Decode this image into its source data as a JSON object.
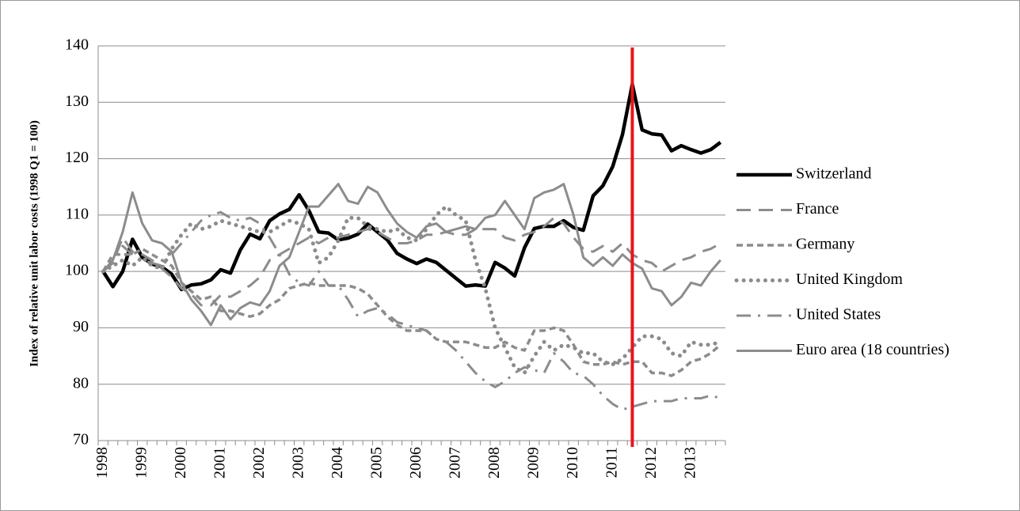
{
  "chart_data": {
    "type": "line",
    "y_label": "Index of relative unit labor costs (1998  Q1 = 100)",
    "categories": [
      "1998",
      null,
      null,
      null,
      "1999",
      null,
      null,
      null,
      "2000",
      null,
      null,
      null,
      "2001",
      null,
      null,
      null,
      "2002",
      null,
      null,
      null,
      "2003",
      null,
      null,
      null,
      "2004",
      null,
      null,
      null,
      "2005",
      null,
      null,
      null,
      "2006",
      null,
      null,
      null,
      "2007",
      null,
      null,
      null,
      "2008",
      null,
      null,
      null,
      "2009",
      null,
      null,
      null,
      "2010",
      null,
      null,
      null,
      "2011",
      null,
      null,
      null,
      "2012",
      null,
      null,
      null,
      "2013",
      null,
      null,
      null
    ],
    "ylim": [
      70,
      140
    ],
    "yticks": [
      70,
      80,
      90,
      100,
      110,
      120,
      130,
      140
    ],
    "grid": true,
    "legend": "right",
    "vertical_line": {
      "category": 54,
      "color": "#e8141b"
    },
    "series": [
      {
        "name": "Switzerland",
        "color": "#000000",
        "style": "solid",
        "values": [
          100,
          97.3,
          100,
          105.7,
          102.5,
          101.3,
          100.8,
          99.5,
          96.8,
          97.6,
          97.8,
          98.5,
          100.3,
          99.7,
          103.8,
          106.6,
          105.8,
          109,
          110.2,
          111,
          113.6,
          110.8,
          107,
          106.8,
          105.6,
          105.9,
          106.6,
          108.4,
          107,
          105.6,
          103.2,
          102.2,
          101.4,
          102.2,
          101.6,
          100.2,
          98.8,
          97.4,
          97.6,
          97.4,
          101.6,
          100.6,
          99.2,
          104.2,
          107.6,
          108,
          108,
          109,
          107.8,
          107.3,
          113.4,
          115.2,
          118.6,
          124.3,
          133.2,
          125.1,
          124.4,
          124.2,
          121.4,
          122.3,
          121.6,
          121,
          121.6,
          122.9
        ]
      },
      {
        "name": "France",
        "color": "#8c8c8c",
        "style": "long-dash",
        "values": [
          100,
          101.5,
          106,
          103.5,
          103,
          102,
          100.5,
          99,
          97,
          96,
          94,
          94,
          95.8,
          95.5,
          96.5,
          97.5,
          99,
          102,
          103,
          104,
          105,
          106,
          105,
          106,
          106,
          106.5,
          107,
          107.5,
          107,
          106,
          105,
          105,
          105.5,
          106.5,
          106.5,
          107,
          106.5,
          106.5,
          107.5,
          107.5,
          107.5,
          106,
          105.5,
          106.5,
          107,
          108,
          109.5,
          108.5,
          106,
          104,
          103.5,
          104.5,
          103.5,
          105,
          103,
          102,
          101.5,
          100,
          101,
          102,
          102.5,
          103.5,
          104,
          105
        ]
      },
      {
        "name": "Germany",
        "color": "#8c8c8c",
        "style": "short-dash",
        "values": [
          100,
          103,
          103,
          103,
          104,
          103,
          102,
          101,
          98,
          96.5,
          95,
          95.5,
          93,
          93,
          92.5,
          92,
          92.5,
          94,
          95,
          97,
          97.5,
          98,
          97.5,
          97.5,
          97.5,
          97.5,
          97,
          96,
          94,
          92,
          90.5,
          89.5,
          89.5,
          89.5,
          88,
          87.5,
          87.5,
          87.5,
          87,
          86.5,
          86.5,
          87.5,
          86.5,
          86,
          89.5,
          89.5,
          90,
          89.5,
          87,
          84,
          83.5,
          83.5,
          84,
          83.5,
          84,
          84,
          82,
          82,
          81.5,
          82.5,
          84,
          84.5,
          85.5,
          87
        ]
      },
      {
        "name": "United Kingdom",
        "color": "#8c8c8c",
        "style": "dot",
        "values": [
          100,
          101,
          102,
          101,
          102.5,
          101,
          100.5,
          104,
          106.5,
          108.5,
          107.5,
          108,
          109,
          108.5,
          108,
          107.5,
          107,
          107,
          108,
          109,
          108.5,
          107.5,
          101.5,
          102.5,
          105.5,
          109.5,
          109.5,
          108,
          107.5,
          107,
          107.5,
          106,
          105.5,
          107.5,
          110,
          111.5,
          110,
          109,
          102,
          97,
          90,
          86.5,
          83,
          82,
          85,
          87.5,
          86,
          87,
          86.5,
          85.5,
          85.5,
          84,
          83.5,
          84.5,
          86.5,
          88.5,
          88.5,
          88,
          85.5,
          85,
          87.5,
          87,
          87,
          87.5
        ]
      },
      {
        "name": "United States",
        "color": "#8c8c8c",
        "style": "dash-dot",
        "values": [
          100,
          102,
          104.5,
          103,
          102,
          101.5,
          101,
          103,
          105,
          107,
          109,
          110,
          110.5,
          109.5,
          109,
          109.5,
          108.5,
          106,
          103,
          99.5,
          98,
          97.5,
          100,
          97.5,
          97.5,
          95,
          92,
          93,
          93.5,
          92.5,
          91,
          90.5,
          90,
          89.5,
          88,
          87.5,
          86,
          84,
          82,
          80.5,
          79.5,
          80.5,
          82,
          83,
          82.5,
          82,
          85.5,
          84,
          82,
          81.5,
          80,
          78,
          76.5,
          75.5,
          76,
          76.5,
          77,
          77,
          77,
          77.5,
          77.5,
          77.5,
          78,
          77.5
        ]
      },
      {
        "name": "Euro area (18 countries)",
        "color": "#8c8c8c",
        "style": "solid",
        "values": [
          100,
          102,
          107,
          114,
          108.5,
          105.5,
          105,
          103.5,
          98,
          95,
          93,
          90.5,
          94,
          91.5,
          93.5,
          94.5,
          94,
          96.5,
          101,
          102.5,
          107,
          111.5,
          111.5,
          113.5,
          115.5,
          112.5,
          112,
          115,
          114,
          111,
          108.5,
          107,
          106,
          108,
          108.5,
          107,
          107.5,
          108,
          107.5,
          109.5,
          110,
          112.5,
          110,
          107.5,
          113,
          114,
          114.5,
          115.5,
          110,
          102.5,
          101,
          102.5,
          101,
          103,
          101.5,
          100.5,
          97,
          96.5,
          94,
          95.5,
          98,
          97.5,
          100,
          102
        ]
      }
    ]
  }
}
